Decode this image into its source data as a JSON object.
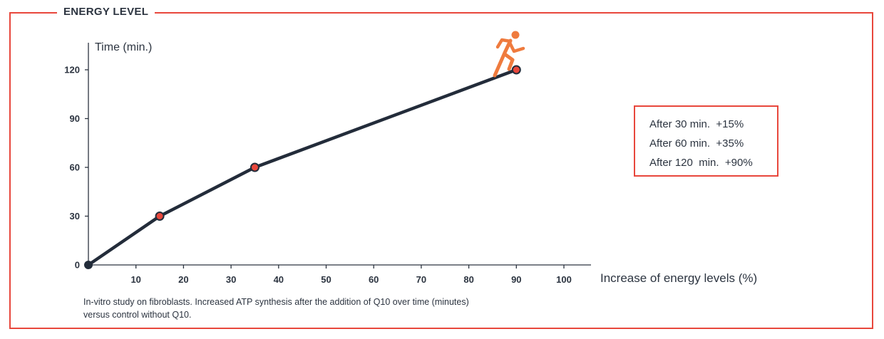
{
  "header": {
    "title": "ENERGY LEVEL"
  },
  "legend": {
    "lines": [
      "After 30 min.  +15%",
      "After 60 min.  +35%",
      "After 120  min.  +90%"
    ]
  },
  "note": {
    "line1": "In-vitro study on fibroblasts. Increased ATP synthesis after the addition of Q10 over time (minutes)",
    "line2": "versus control without Q10."
  },
  "colors": {
    "accent": "#e8473c",
    "line": "#232c3a",
    "runner": "#ef7b3e"
  },
  "icons": {
    "marker": "running-person-icon"
  },
  "chart_data": {
    "type": "line",
    "title": "ENERGY LEVEL",
    "xlabel": "Increase of energy levels (%)",
    "ylabel": "Time (min.)",
    "xlim": [
      0,
      100
    ],
    "ylim": [
      0,
      120
    ],
    "xticks": [
      10,
      20,
      30,
      40,
      50,
      60,
      70,
      80,
      90,
      100
    ],
    "yticks": [
      0,
      30,
      60,
      90,
      120
    ],
    "series": [
      {
        "x": [
          0,
          15,
          35,
          90
        ],
        "y": [
          0,
          30,
          60,
          120
        ]
      }
    ],
    "grid": false
  }
}
